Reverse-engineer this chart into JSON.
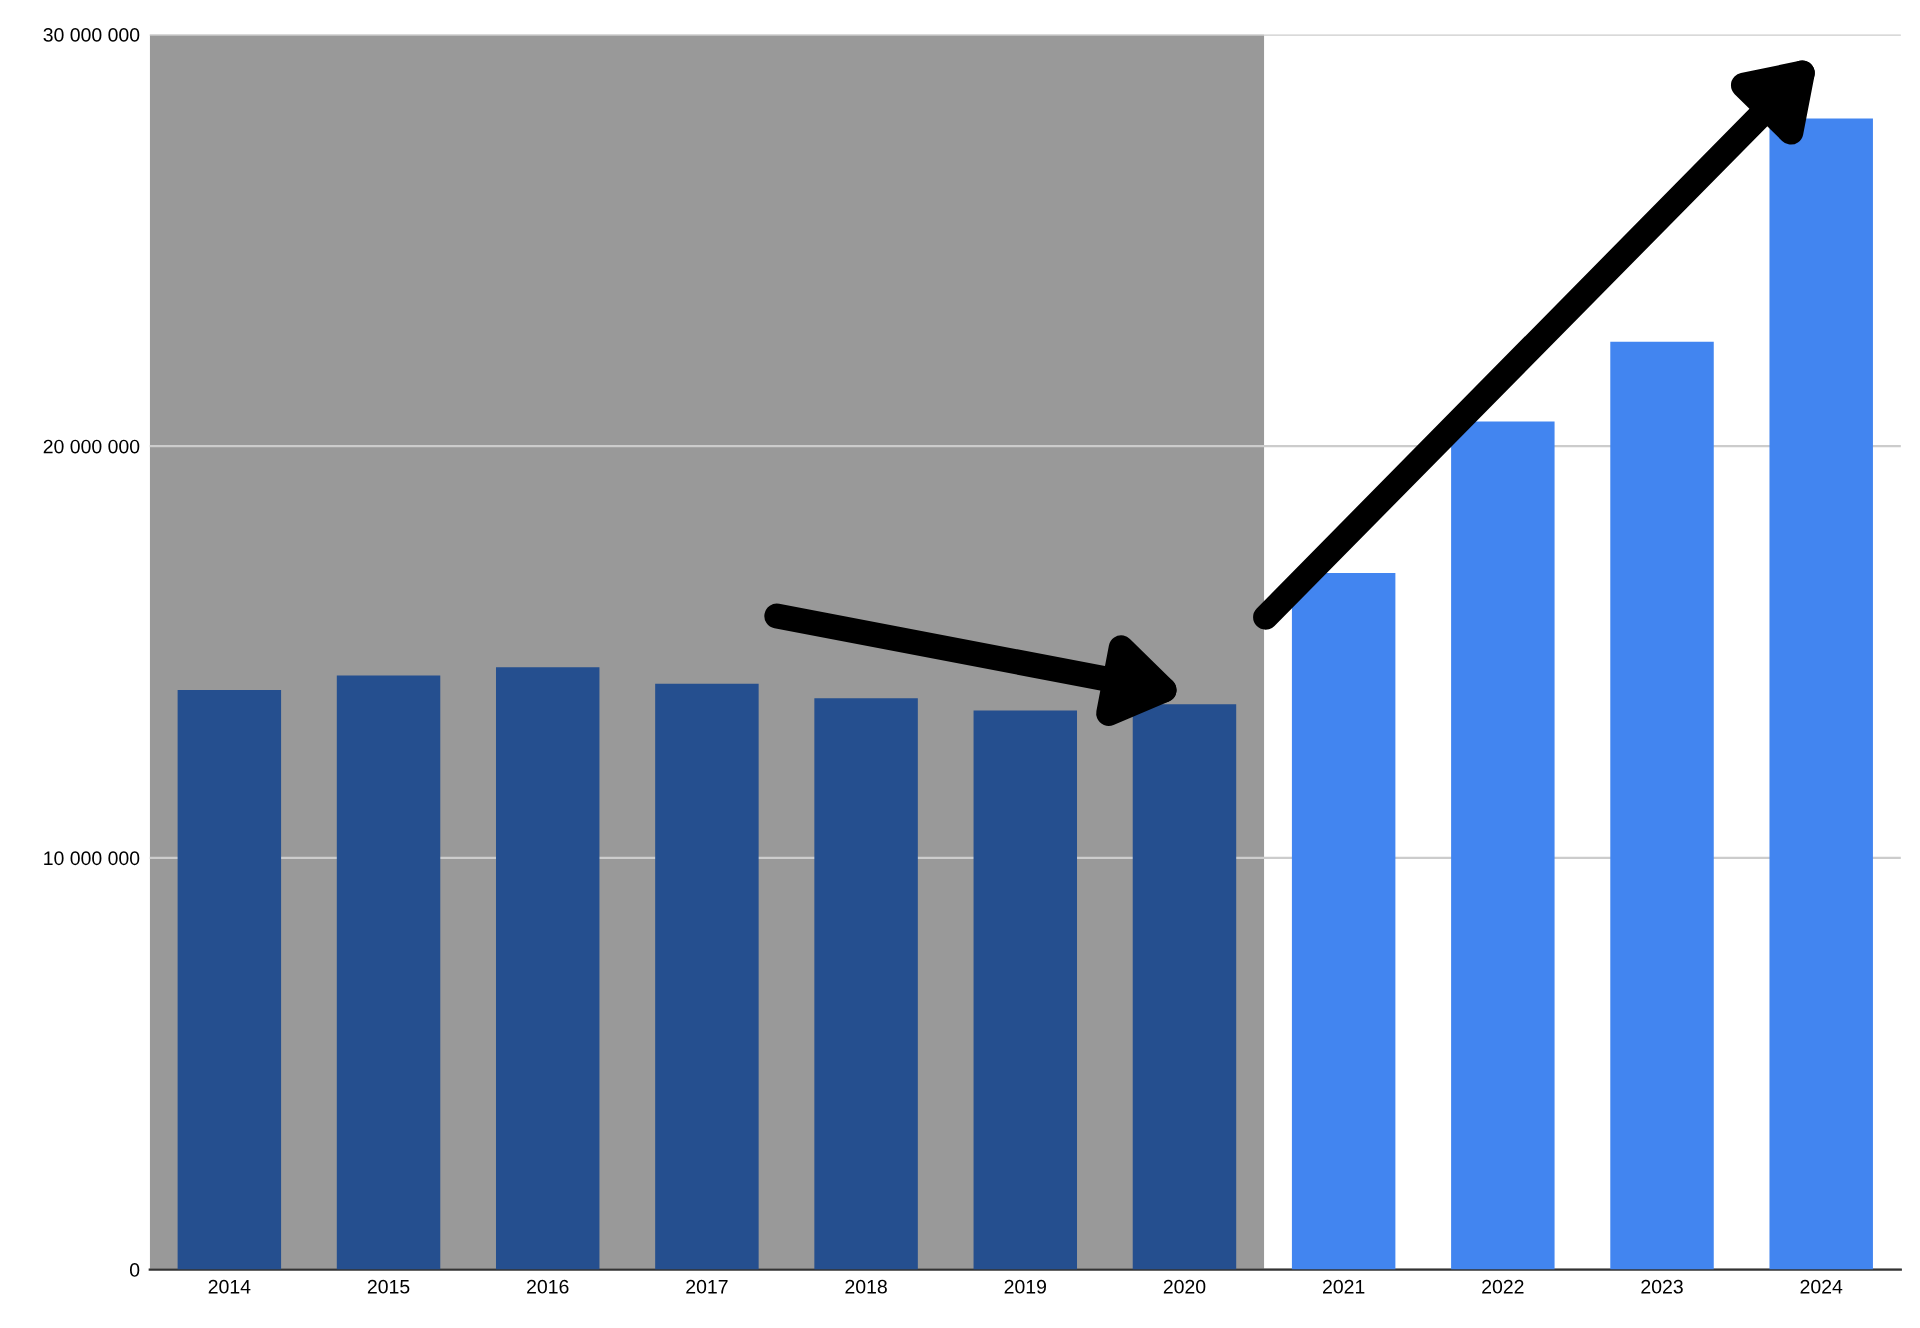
{
  "chart_data": {
    "type": "bar",
    "categories": [
      "2014",
      "2015",
      "2016",
      "2017",
      "2018",
      "2019",
      "2020",
      "2021",
      "2022",
      "2023",
      "2024"
    ],
    "values": [
      14080000,
      14430000,
      14630000,
      14230000,
      13880000,
      13580000,
      13730000,
      16920000,
      20600000,
      22540000,
      27960000
    ],
    "colors": [
      "#254f8f",
      "#254f8f",
      "#254f8f",
      "#254f8f",
      "#254f8f",
      "#254f8f",
      "#254f8f",
      "#4285f0",
      "#4285f0",
      "#4285f0",
      "#4285f0"
    ],
    "ylim": [
      0,
      30000000
    ],
    "yticks": [
      0,
      {
        "value": 10000000,
        "label": "10 000 000"
      },
      {
        "value": 20000000,
        "label": "20 000 000"
      },
      {
        "value": 30000000,
        "label": "30 000 000"
      }
    ],
    "grid": "y",
    "bands": [
      {
        "axis": "x",
        "from": "2014",
        "to": "2020",
        "color": "#999999"
      }
    ]
  }
}
